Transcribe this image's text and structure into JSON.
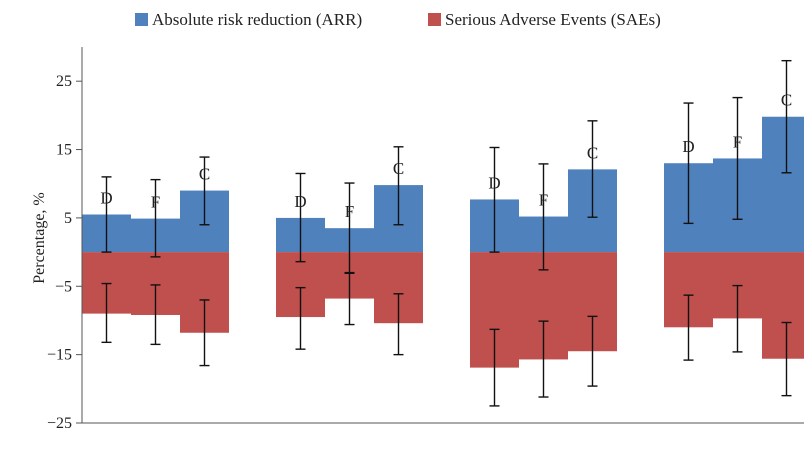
{
  "chart_data": {
    "type": "bar",
    "title": "",
    "xlabel": "",
    "ylabel": "Percentage, %",
    "ylim": [
      -25,
      30
    ],
    "yticks": [
      25,
      15,
      5,
      -5,
      -15,
      -25
    ],
    "ytick_labels": [
      "25",
      "15",
      "5",
      "−5",
      "−15",
      "−25"
    ],
    "grid": false,
    "legend_position": "top",
    "groups": [
      {
        "bars": [
          {
            "label": "D",
            "arr": 5.5,
            "arr_err": [
              0,
              11
            ],
            "sae": -9,
            "sae_err": [
              -13.2,
              -4.6
            ]
          },
          {
            "label": "F",
            "arr": 4.9,
            "arr_err": [
              -0.7,
              10.6
            ],
            "sae": -9.2,
            "sae_err": [
              -13.5,
              -4.8
            ]
          },
          {
            "label": "C",
            "arr": 9,
            "arr_err": [
              4,
              13.9
            ],
            "sae": -11.8,
            "sae_err": [
              -16.6,
              -7
            ]
          }
        ]
      },
      {
        "bars": [
          {
            "label": "D",
            "arr": 5,
            "arr_err": [
              -1.4,
              11.5
            ],
            "sae": -9.5,
            "sae_err": [
              -14.2,
              -5.2
            ]
          },
          {
            "label": "F",
            "arr": 3.5,
            "arr_err": [
              -3.1,
              10.1
            ],
            "sae": -6.8,
            "sae_err": [
              -10.6,
              -3
            ]
          },
          {
            "label": "C",
            "arr": 9.8,
            "arr_err": [
              4,
              15.4
            ],
            "sae": -10.4,
            "sae_err": [
              -15,
              -6.1
            ]
          }
        ]
      },
      {
        "bars": [
          {
            "label": "D",
            "arr": 7.7,
            "arr_err": [
              0,
              15.3
            ],
            "sae": -16.9,
            "sae_err": [
              -22.5,
              -11.3
            ]
          },
          {
            "label": "F",
            "arr": 5.2,
            "arr_err": [
              -2.6,
              12.9
            ],
            "sae": -15.7,
            "sae_err": [
              -21.2,
              -10.1
            ]
          },
          {
            "label": "C",
            "arr": 12.1,
            "arr_err": [
              5.1,
              19.2
            ],
            "sae": -14.5,
            "sae_err": [
              -19.6,
              -9.4
            ]
          }
        ]
      },
      {
        "bars": [
          {
            "label": "D",
            "arr": 13,
            "arr_err": [
              4.2,
              21.8
            ],
            "sae": -11,
            "sae_err": [
              -15.8,
              -6.3
            ]
          },
          {
            "label": "F",
            "arr": 13.7,
            "arr_err": [
              4.8,
              22.6
            ],
            "sae": -9.7,
            "sae_err": [
              -14.6,
              -4.9
            ]
          },
          {
            "label": "C",
            "arr": 19.8,
            "arr_err": [
              11.6,
              28
            ],
            "sae": -15.6,
            "sae_err": [
              -21,
              -10.3
            ]
          }
        ]
      }
    ],
    "series": [
      {
        "name": "Absolute risk reduction (ARR)",
        "color": "#4f81bd"
      },
      {
        "name": "Serious Adverse Events (SAEs)",
        "color": "#c0504d"
      }
    ]
  }
}
